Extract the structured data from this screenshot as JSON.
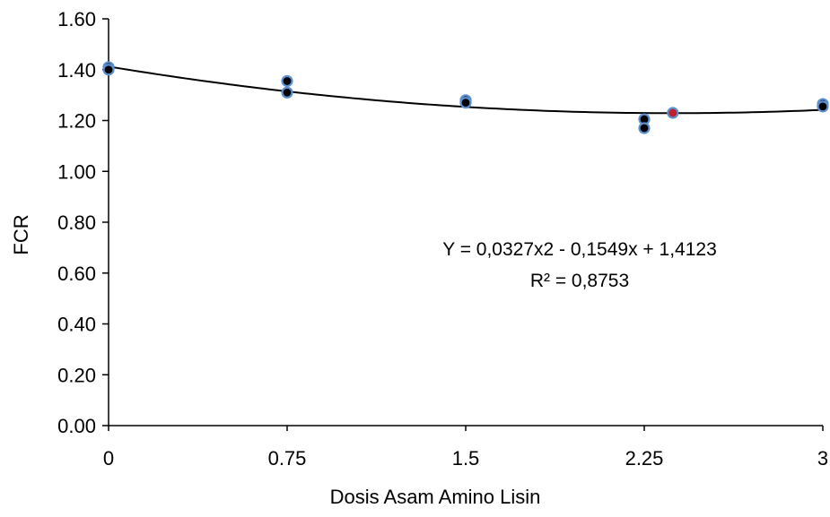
{
  "chart_data": {
    "type": "scatter",
    "title": "",
    "xlabel": "Dosis Asam Amino Lisin",
    "ylabel": "FCR",
    "x_ticks": [
      "0",
      "0.75",
      "1.5",
      "2.25",
      "3"
    ],
    "y_ticks": [
      "0.00",
      "0.20",
      "0.40",
      "0.60",
      "0.80",
      "1.00",
      "1.20",
      "1.40",
      "1.60"
    ],
    "xlim": [
      0,
      3
    ],
    "ylim": [
      0,
      1.6
    ],
    "grid": false,
    "legend": "none",
    "series": [
      {
        "type": "scatter",
        "color": "#000000",
        "outline": "#5b8fd0",
        "points": [
          {
            "x": 0,
            "y": 1.41
          },
          {
            "x": 0,
            "y": 1.4
          },
          {
            "x": 0.75,
            "y": 1.355
          },
          {
            "x": 0.75,
            "y": 1.31
          },
          {
            "x": 1.5,
            "y": 1.28
          },
          {
            "x": 1.5,
            "y": 1.27
          },
          {
            "x": 2.25,
            "y": 1.205
          },
          {
            "x": 2.25,
            "y": 1.17
          },
          {
            "x": 3,
            "y": 1.265
          },
          {
            "x": 3,
            "y": 1.255
          }
        ]
      },
      {
        "type": "scatter",
        "color": "#c0202a",
        "outline": "#5b8fd0",
        "points": [
          {
            "x": 2.37,
            "y": 1.23
          }
        ]
      }
    ],
    "trendline": {
      "type": "polynomial",
      "coefficients": {
        "a": 0.0327,
        "b": -0.1549,
        "c": 1.4123
      },
      "x_range": [
        0,
        3
      ],
      "color": "#000000"
    },
    "annotations": {
      "equation": "Y = 0,0327x2 - 0,1549x + 1,4123",
      "r_squared": "R² = 0,8753"
    }
  }
}
